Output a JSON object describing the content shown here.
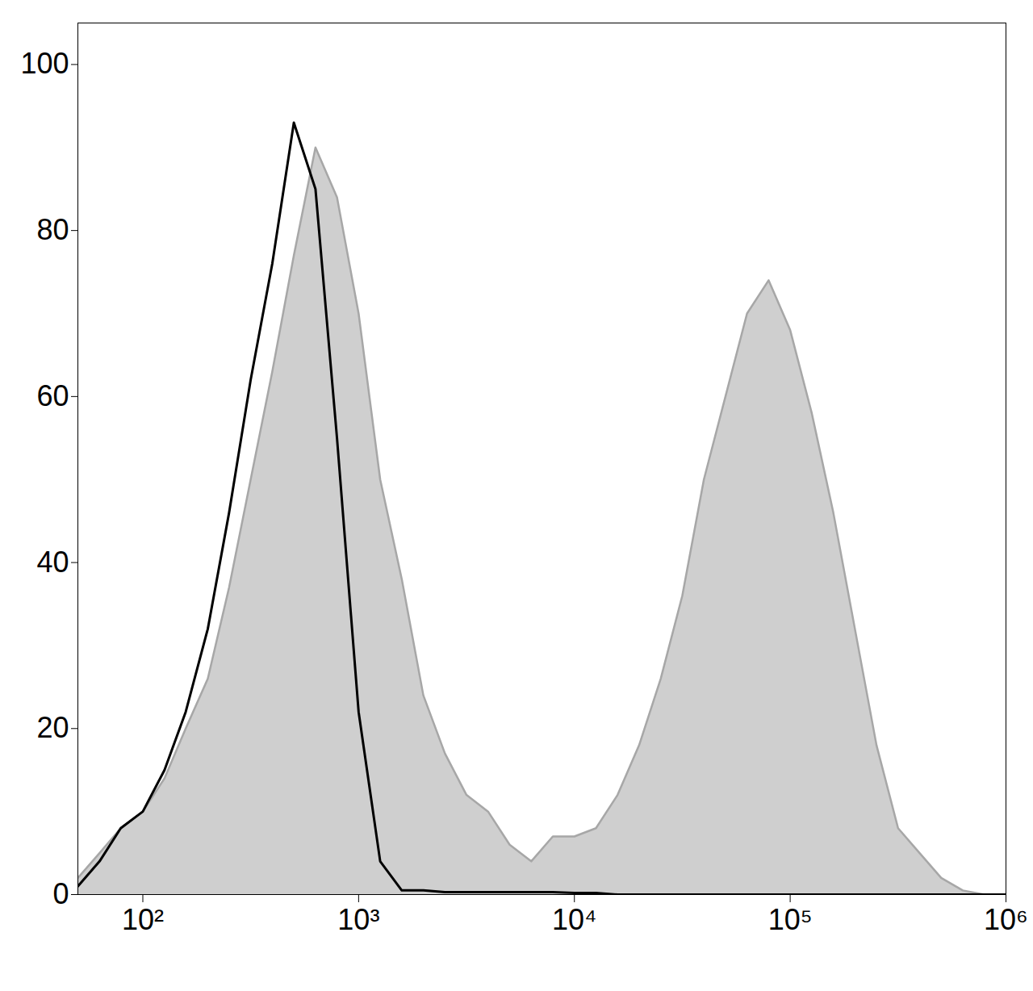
{
  "chart_data": {
    "type": "histogram",
    "log": "x",
    "grid": false,
    "xlim": [
      50,
      1000000
    ],
    "ylim": [
      0,
      105
    ],
    "xticks": [
      {
        "value": 100,
        "label": "10²"
      },
      {
        "value": 1000,
        "label": "10³"
      },
      {
        "value": 10000,
        "label": "10⁴"
      },
      {
        "value": 100000,
        "label": "10⁵"
      },
      {
        "value": 1000000,
        "label": "10⁶"
      }
    ],
    "yticks": [
      0,
      20,
      40,
      60,
      80,
      100
    ],
    "x": [
      50,
      63,
      79,
      100,
      126,
      158,
      200,
      251,
      316,
      398,
      501,
      631,
      794,
      1000,
      1259,
      1585,
      1995,
      2512,
      3162,
      3981,
      5012,
      6310,
      7943,
      10000,
      12589,
      15849,
      19953,
      25119,
      31623,
      39811,
      50119,
      63096,
      79433,
      100000,
      125893,
      158489,
      199526,
      251189,
      316228,
      398107,
      501187,
      630957,
      794328,
      1000000
    ],
    "series": [
      {
        "type": "area",
        "color": "#cfcfcf",
        "values": [
          2,
          5,
          8,
          10,
          14,
          20,
          26,
          37,
          50,
          63,
          77,
          90,
          84,
          70,
          50,
          38,
          24,
          17,
          12,
          10,
          6,
          4,
          7,
          7,
          8,
          12,
          18,
          26,
          36,
          50,
          60,
          70,
          74,
          68,
          58,
          46,
          32,
          18,
          8,
          5,
          2,
          0.5,
          0,
          0
        ]
      },
      {
        "type": "line",
        "color": "#000000",
        "values": [
          1,
          4,
          8,
          10,
          15,
          22,
          32,
          46,
          62,
          76,
          93,
          85,
          55,
          22,
          4,
          0.5,
          0.5,
          0.3,
          0.3,
          0.3,
          0.3,
          0.3,
          0.3,
          0.2,
          0.2,
          0,
          0,
          0,
          0,
          0,
          0,
          0,
          0,
          0,
          0,
          0,
          0,
          0,
          0,
          0,
          0,
          0,
          0,
          0
        ]
      }
    ]
  }
}
